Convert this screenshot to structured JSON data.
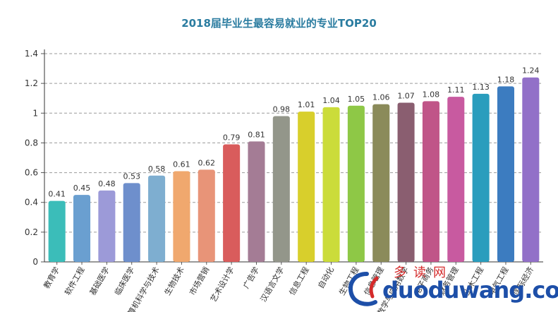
{
  "chart_data": {
    "type": "bar",
    "title": "2018届毕业生最容易就业的专业TOP20",
    "categories": [
      "教育学",
      "软件工程",
      "基础医学",
      "临床医学",
      "计算机科学与技术",
      "生物技术",
      "市场营销",
      "艺术设计学",
      "广告学",
      "汉语言文学",
      "信息工程",
      "自动化",
      "生物工程",
      "信息管理",
      "数学与应用数学",
      "电子商务",
      "财务管理",
      "土木工程",
      "电气工程",
      "国际经济"
    ],
    "values": [
      0.41,
      0.45,
      0.48,
      0.53,
      0.58,
      0.61,
      0.62,
      0.79,
      0.81,
      0.98,
      1.01,
      1.04,
      1.05,
      1.06,
      1.07,
      1.08,
      1.11,
      1.13,
      1.18,
      1.24
    ],
    "value_labels": [
      "0.41",
      "0.45",
      "0.48",
      "0.53",
      "0.58",
      "0.61",
      "0.62",
      "0.79",
      "0.81",
      "0.98",
      "1.01",
      "1.04",
      "1.05",
      "1.06",
      "1.07",
      "1.08",
      "1.11",
      "1.13",
      "1.18",
      "1.24"
    ],
    "y_ticks": [
      "0",
      "0.2",
      "0.4",
      "0.6",
      "0.8",
      "1",
      "1.2",
      "1.4"
    ],
    "ylim": [
      0,
      1.4
    ],
    "xlabel": "",
    "ylabel": "",
    "grid": "horizontal dashed",
    "colors": [
      "#3bbdb9",
      "#6a9fd0",
      "#9c9ad8",
      "#6e8fcc",
      "#7eaed0",
      "#f0a86e",
      "#e89478",
      "#d95c5c",
      "#a47c95",
      "#93968a",
      "#d8cf2c",
      "#cbdc3a",
      "#8ec846",
      "#8b8b5a",
      "#8a5e70",
      "#c05588",
      "#c85aa0",
      "#2a9dbd",
      "#3c7cc0",
      "#9270c8"
    ]
  },
  "watermark": {
    "site": "duoduwang.com",
    "name_cn": "多读网"
  }
}
